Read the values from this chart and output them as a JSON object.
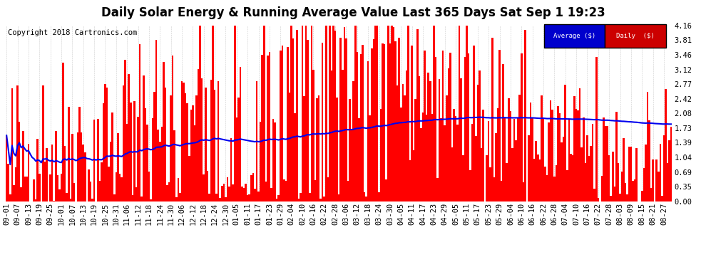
{
  "title": "Daily Solar Energy & Running Average Value Last 365 Days Sat Sep 1 19:23",
  "copyright": "Copyright 2018 Cartronics.com",
  "ylabel_right_ticks": [
    0.0,
    0.35,
    0.69,
    1.04,
    1.39,
    1.73,
    2.08,
    2.42,
    2.77,
    3.12,
    3.46,
    3.81,
    4.16
  ],
  "ylim": [
    0.0,
    4.16
  ],
  "bar_color": "#FF0000",
  "avg_line_color": "#0000EE",
  "bg_color": "#FFFFFF",
  "grid_color": "#AAAAAA",
  "legend_avg_bg": "#0000CC",
  "legend_daily_bg": "#CC0000",
  "legend_text_color": "#FFFFFF",
  "title_fontsize": 12,
  "copyright_fontsize": 7.5,
  "tick_fontsize": 7.5,
  "n_days": 365,
  "x_tick_labels": [
    "09-01",
    "09-07",
    "09-13",
    "09-19",
    "09-25",
    "10-01",
    "10-07",
    "10-13",
    "10-19",
    "10-25",
    "10-31",
    "11-06",
    "11-12",
    "11-18",
    "11-24",
    "11-30",
    "12-06",
    "12-12",
    "12-18",
    "12-24",
    "12-30",
    "01-05",
    "01-11",
    "01-17",
    "01-23",
    "01-29",
    "02-04",
    "02-10",
    "02-16",
    "02-22",
    "02-28",
    "03-06",
    "03-12",
    "03-18",
    "03-24",
    "03-30",
    "04-05",
    "04-11",
    "04-17",
    "04-23",
    "04-29",
    "05-05",
    "05-11",
    "05-17",
    "05-23",
    "05-29",
    "06-04",
    "06-10",
    "06-16",
    "06-22",
    "06-28",
    "07-04",
    "07-10",
    "07-16",
    "07-22",
    "07-28",
    "08-03",
    "08-09",
    "08-15",
    "08-21",
    "08-27"
  ],
  "x_tick_positions": [
    0,
    6,
    12,
    18,
    24,
    30,
    36,
    42,
    48,
    54,
    60,
    66,
    72,
    78,
    84,
    90,
    96,
    102,
    108,
    114,
    120,
    126,
    132,
    138,
    144,
    150,
    156,
    162,
    168,
    174,
    180,
    186,
    192,
    198,
    204,
    210,
    216,
    222,
    228,
    234,
    240,
    246,
    252,
    258,
    264,
    270,
    276,
    282,
    288,
    294,
    300,
    306,
    312,
    318,
    324,
    330,
    336,
    342,
    348,
    354,
    360
  ]
}
